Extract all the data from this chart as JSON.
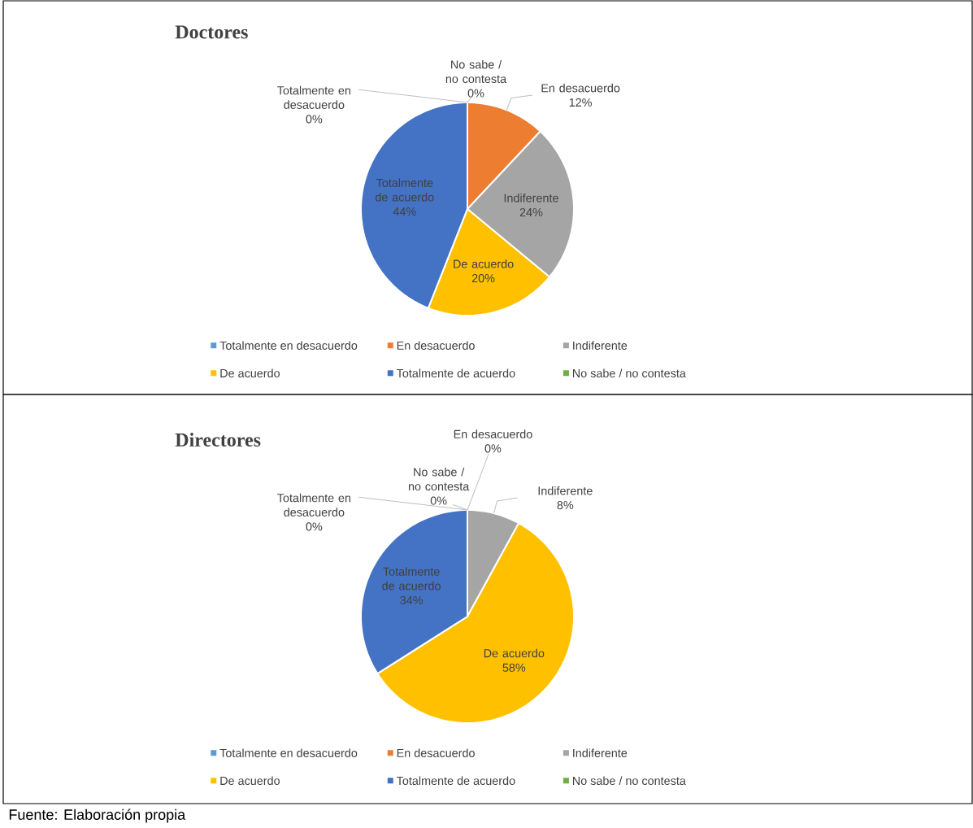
{
  "chart_data": [
    {
      "type": "pie",
      "title": "Doctores",
      "categories": [
        "Totalmente en desacuerdo",
        "En desacuerdo",
        "Indiferente",
        "De acuerdo",
        "Totalmente de acuerdo",
        "No sabe / no contesta"
      ],
      "values": [
        0,
        12,
        24,
        20,
        44,
        0
      ],
      "value_labels": [
        "0%",
        "12%",
        "24%",
        "20%",
        "44%",
        "0%"
      ],
      "colors": [
        "#5b9bd5",
        "#ed7d31",
        "#a5a5a5",
        "#ffc000",
        "#4472c4",
        "#70ad47"
      ],
      "legend": "bottom"
    },
    {
      "type": "pie",
      "title": "Directores",
      "categories": [
        "Totalmente en desacuerdo",
        "En desacuerdo",
        "Indiferente",
        "De acuerdo",
        "Totalmente de acuerdo",
        "No sabe / no contesta"
      ],
      "values": [
        0,
        0,
        8,
        58,
        34,
        0
      ],
      "value_labels": [
        "0%",
        "0%",
        "8%",
        "58%",
        "34%",
        "0%"
      ],
      "colors": [
        "#5b9bd5",
        "#ed7d31",
        "#a5a5a5",
        "#ffc000",
        "#4472c4",
        "#70ad47"
      ],
      "legend": "bottom",
      "annotations": [
        "Fuente: Elaboración propia"
      ]
    }
  ]
}
